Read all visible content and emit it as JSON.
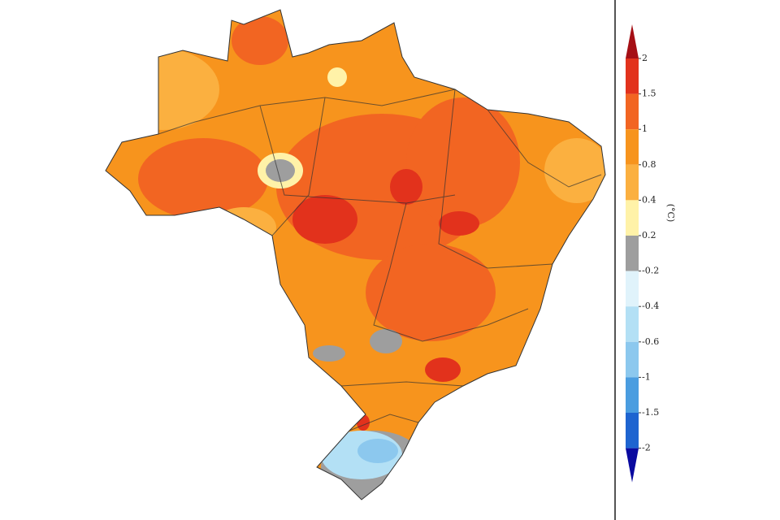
{
  "colorbar": {
    "unit": "(°C)",
    "ticks": [
      2,
      1.5,
      1,
      0.8,
      0.4,
      0.2,
      -0.2,
      -0.4,
      -0.6,
      -1,
      -1.5,
      -2
    ],
    "colors": [
      "#a50f15",
      "#e2321c",
      "#f26522",
      "#f7941d",
      "#fbb040",
      "#fff2a8",
      "#9e9e9e",
      "#e0f3fb",
      "#b3e0f5",
      "#8cc8ee",
      "#4a9de0",
      "#1e64d0",
      "#0a0aa0"
    ]
  }
}
